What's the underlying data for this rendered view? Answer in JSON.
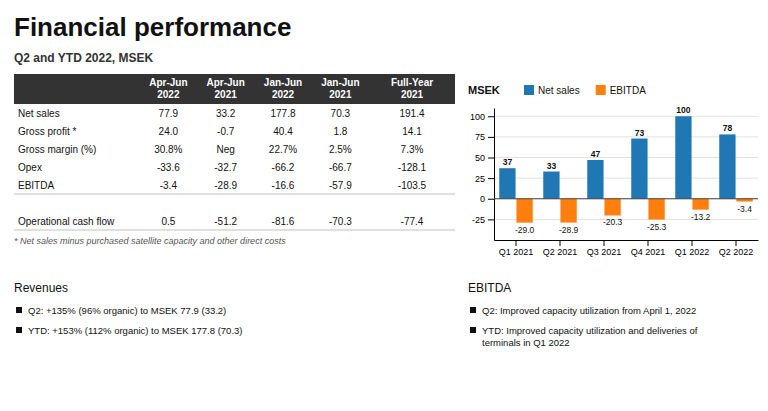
{
  "title": "Financial performance",
  "subtitle": "Q2 and YTD 2022, MSEK",
  "table": {
    "headers": [
      null,
      "Apr-Jun\n2022",
      "Apr-Jun\n2021",
      "Jan-Jun\n2022",
      "Jan-Jun\n2021",
      "Full-Year\n2021"
    ],
    "rows": [
      [
        "Net sales",
        "77.9",
        "33.2",
        "177.8",
        "70.3",
        "191.4"
      ],
      [
        "Gross profit *",
        "24.0",
        "-0.7",
        "40.4",
        "1.8",
        "14.1"
      ],
      [
        "Gross margin (%)",
        "30.8%",
        "Neg",
        "22.7%",
        "2.5%",
        "7.3%"
      ],
      [
        "Opex",
        "-33.6",
        "-32.7",
        "-66.2",
        "-66.7",
        "-128.1"
      ],
      [
        "EBITDA",
        "-3.4",
        "-28.9",
        "-16.6",
        "-57.9",
        "-103.5"
      ],
      null,
      [
        "Operational cash flow",
        "0.5",
        "-51.2",
        "-81.6",
        "-70.3",
        "-77.4"
      ]
    ]
  },
  "footnote": "* Net sales minus purchased satellite capacity and other direct costs",
  "sections": [
    {
      "title": "Revenues",
      "bullets": [
        "Q2: +135% (96% organic) to MSEK 77.9 (33.2)",
        "YTD: +153% (112% organic) to MSEK 177.8 (70.3)"
      ]
    },
    {
      "title": "EBITDA",
      "bullets": [
        "Q2: Improved capacity utilization from April 1, 2022",
        "YTD: Improved capacity utilization and deliveries of\nterminals in Q1 2022"
      ]
    }
  ],
  "chart_data": {
    "type": "bar",
    "y_label": "MSEK",
    "categories": [
      "Q1 2021",
      "Q2 2021",
      "Q3 2021",
      "Q4 2021",
      "Q1 2022",
      "Q2 2022"
    ],
    "series": [
      {
        "name": "Net sales",
        "values": [
          37,
          33,
          47,
          73,
          100,
          78
        ]
      },
      {
        "name": "EBITDA",
        "values": [
          -29.0,
          -28.9,
          -20.3,
          -25.3,
          -13.2,
          -3.4
        ],
        "value_labels": [
          "-29.0",
          "-28.9",
          "-20.3",
          "-25.3",
          "-13.2",
          "-3.4"
        ]
      }
    ],
    "ylim": [
      -50,
      110
    ],
    "yticks": [
      -25,
      0,
      25,
      50,
      75,
      100
    ],
    "grid": true,
    "legend": "upper left",
    "data_labels": true
  }
}
